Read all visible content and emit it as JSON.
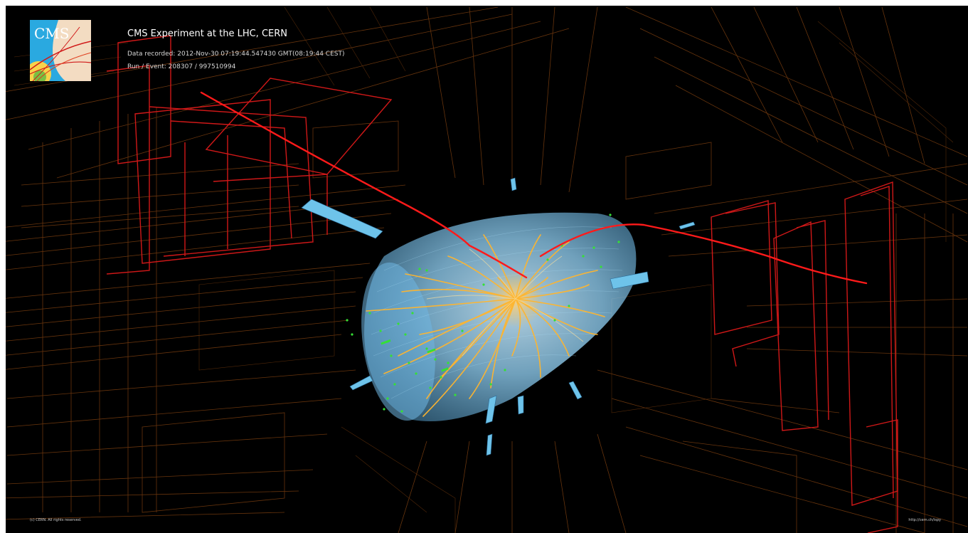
{
  "header": {
    "title": "CMS Experiment at the LHC, CERN",
    "recorded": "Data recorded: 2012-Nov-30 07:19:44.547430 GMT(08:19:44 CEST)",
    "run_event": "Run / Event: 208307 / 997510994"
  },
  "logo": {
    "text": "CMS",
    "icon": "cms-logo-icon"
  },
  "footer": {
    "copyright": "(c) CERN. All rights reserved.",
    "url": "http://cern.ch/ispy"
  },
  "colors": {
    "background": "#000000",
    "detector_wire": "#7a3e10",
    "muon_chamber": "#d01818",
    "muon_track": "#ff1a1a",
    "tracker_barrel": "#87c8ee",
    "tracks": "#ffb52e",
    "hits": "#35e035",
    "calo_towers": "#6ec3ea"
  }
}
